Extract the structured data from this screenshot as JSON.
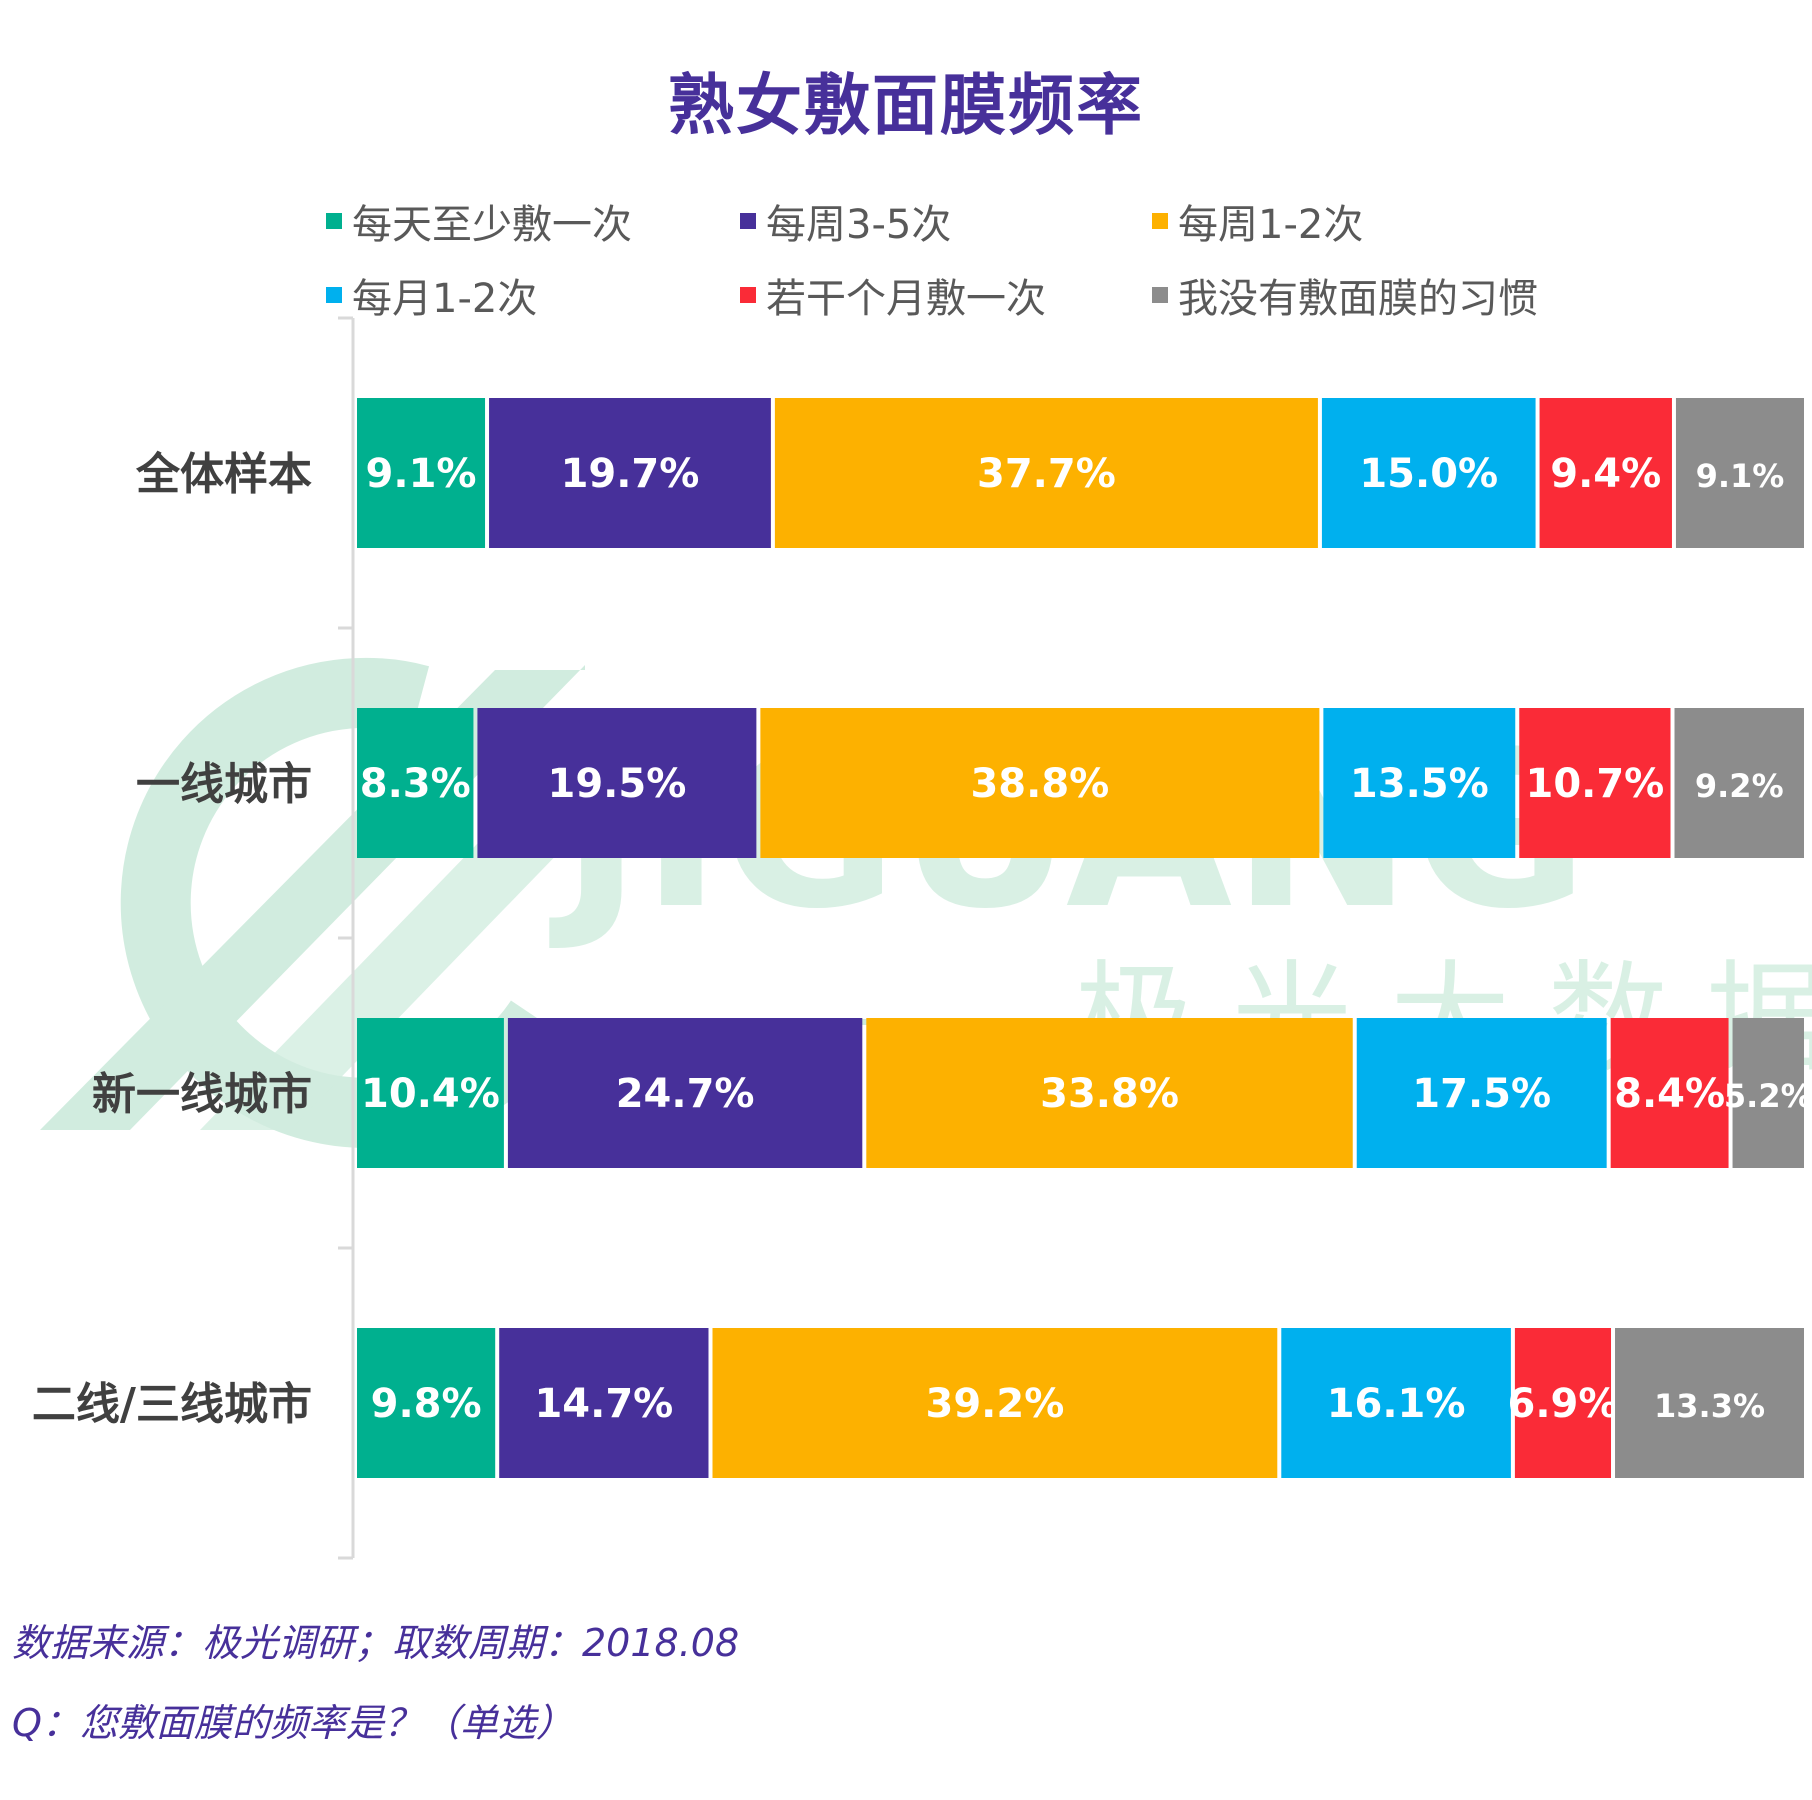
{
  "chart_data": {
    "type": "bar",
    "orientation": "horizontal",
    "stacked": true,
    "title": "熟女敷面膜频率",
    "xlim": [
      0,
      100
    ],
    "grid": false,
    "legend_position": "top",
    "categories": [
      "全体样本",
      "一线城市",
      "新一线城市",
      "二线/三线城市"
    ],
    "series": [
      {
        "name": "每天至少敷一次",
        "color": "#00b08f",
        "values": [
          9.1,
          8.3,
          10.4,
          9.8
        ],
        "labels": [
          "9.1%",
          "8.3%",
          "10.4%",
          "9.8%"
        ]
      },
      {
        "name": "每周3-5次",
        "color": "#47309a",
        "values": [
          19.7,
          19.5,
          24.7,
          14.7
        ],
        "labels": [
          "19.7%",
          "19.5%",
          "24.7%",
          "14.7%"
        ]
      },
      {
        "name": "每周1-2次",
        "color": "#fdb100",
        "values": [
          37.7,
          38.8,
          33.8,
          39.2
        ],
        "labels": [
          "37.7%",
          "38.8%",
          "33.8%",
          "39.2%"
        ]
      },
      {
        "name": "每月1-2次",
        "color": "#00b0ee",
        "values": [
          15.0,
          13.5,
          17.5,
          16.1
        ],
        "labels": [
          "15.0%",
          "13.5%",
          "17.5%",
          "16.1%"
        ]
      },
      {
        "name": "若干个月敷一次",
        "color": "#fa2b37",
        "values": [
          9.4,
          10.7,
          8.4,
          6.9
        ],
        "labels": [
          "9.4%",
          "10.7%",
          "8.4%",
          "6.9%"
        ]
      },
      {
        "name": "我没有敷面膜的习惯",
        "color": "#8c8c8c",
        "values": [
          9.1,
          9.2,
          5.2,
          13.3
        ],
        "labels": [
          "9.1%",
          "9.2%",
          "5.2%",
          "13.3%"
        ]
      }
    ]
  },
  "footnotes": {
    "source": "数据来源：极光调研；取数周期：2018.08",
    "question": "Q：您敷面膜的频率是？（单选）"
  },
  "watermark": {
    "text_en": "JIGUANG",
    "text_cn": "极 光 大 数 据",
    "color": "#cdebdc"
  }
}
